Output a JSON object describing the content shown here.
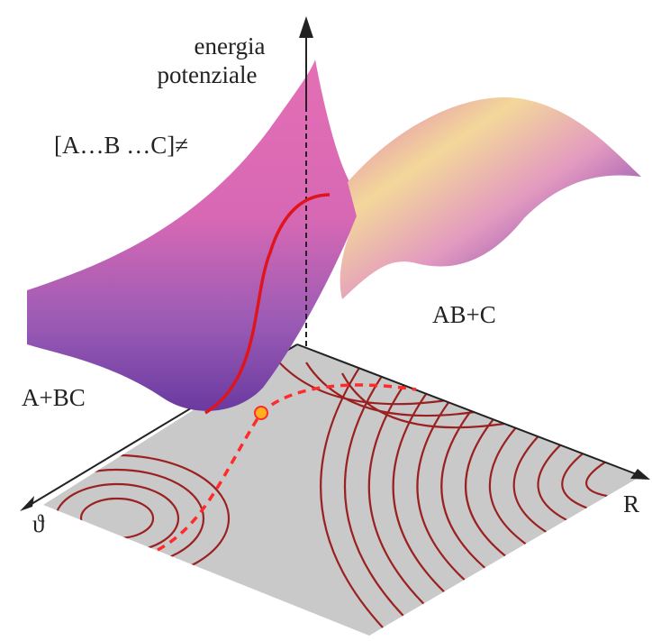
{
  "labels": {
    "energy_axis": [
      "energia",
      "potenziale"
    ],
    "transition_state": "[A…B …C]≠",
    "products": "AB+C",
    "reactants": "A+BC",
    "theta_axis": "ϑ",
    "r_axis": "R"
  }
}
